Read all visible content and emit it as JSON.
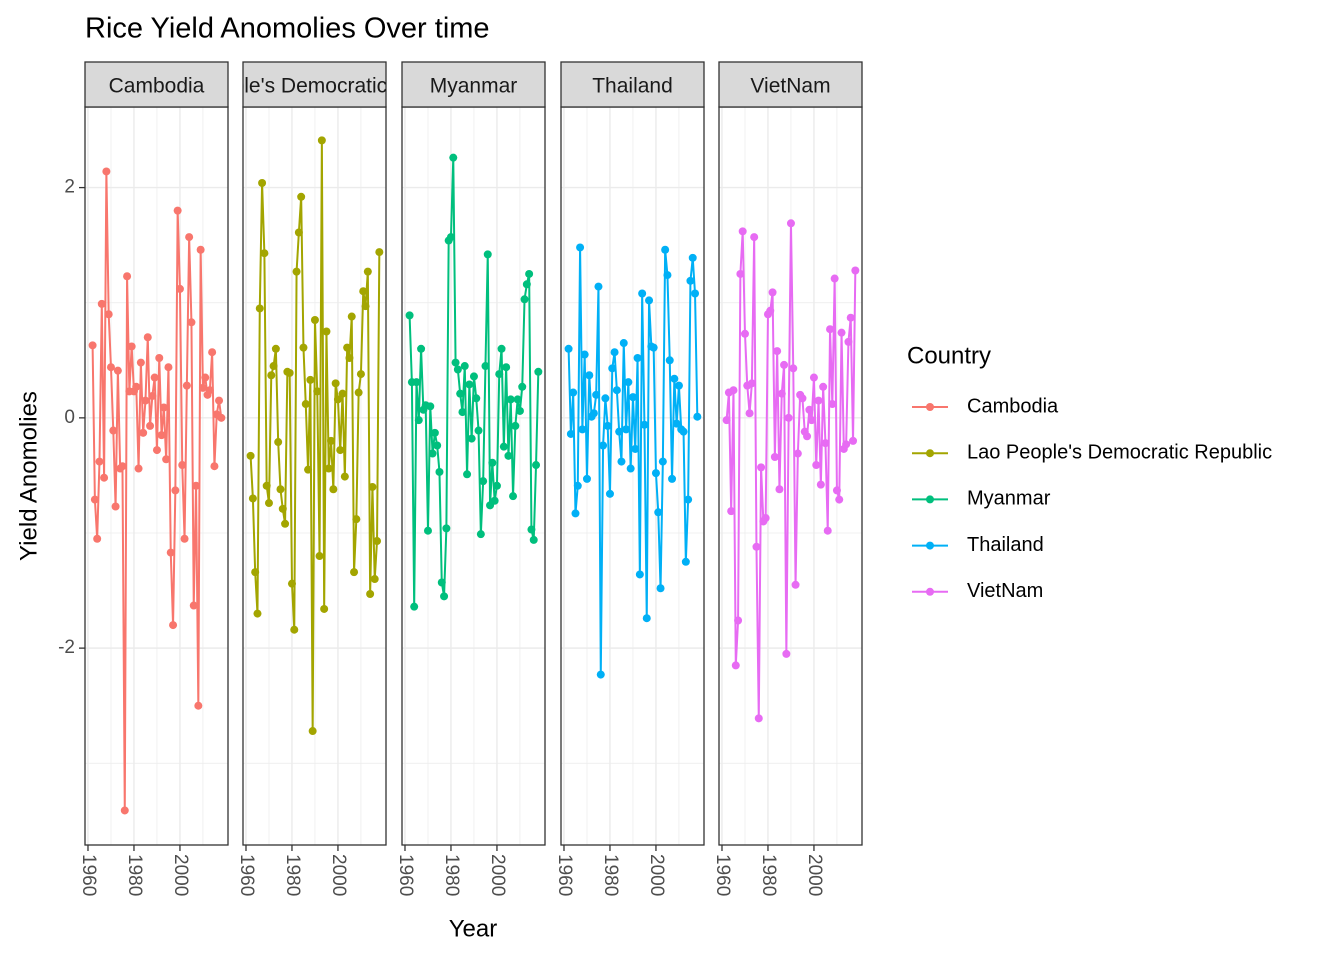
{
  "chart_data": {
    "type": "line",
    "title": "Rice Yield Anomolies Over time",
    "xlabel": "Year",
    "ylabel": "Yield Anomolies",
    "legend_title": "Country",
    "legend": "right",
    "facet": true,
    "grid": true,
    "xlim": [
      1958.7,
      2020.9
    ],
    "xticks": [
      1960,
      1980,
      2000
    ],
    "x_minor_grid": [
      1970,
      1990,
      2010
    ],
    "ylim": [
      -3.71,
      2.7
    ],
    "yticks": [
      -2,
      0,
      2
    ],
    "y_minor_grid": [
      -3,
      -1,
      1
    ],
    "x": [
      1962,
      1963,
      1964,
      1965,
      1966,
      1967,
      1968,
      1969,
      1970,
      1971,
      1972,
      1973,
      1974,
      1975,
      1976,
      1977,
      1978,
      1979,
      1980,
      1981,
      1982,
      1983,
      1984,
      1985,
      1986,
      1987,
      1988,
      1989,
      1990,
      1991,
      1992,
      1993,
      1994,
      1995,
      1996,
      1997,
      1998,
      1999,
      2000,
      2001,
      2002,
      2003,
      2004,
      2005,
      2006,
      2007,
      2008,
      2009,
      2010,
      2011,
      2012,
      2013,
      2014,
      2015,
      2016,
      2017,
      2018
    ],
    "series": [
      {
        "name": "Cambodia",
        "color": "#f8766d",
        "values": [
          0.63,
          -0.71,
          -1.05,
          -0.38,
          0.99,
          -0.52,
          2.14,
          0.9,
          0.44,
          -0.11,
          -0.77,
          0.41,
          -0.44,
          -0.42,
          -3.41,
          1.23,
          0.23,
          0.62,
          0.23,
          0.27,
          -0.44,
          0.48,
          -0.13,
          0.15,
          0.7,
          -0.07,
          0.19,
          0.35,
          -0.28,
          0.52,
          -0.15,
          0.09,
          -0.36,
          0.44,
          -1.17,
          -1.8,
          -0.63,
          1.8,
          1.12,
          -0.41,
          -1.05,
          0.28,
          1.57,
          0.83,
          -1.63,
          -0.59,
          -2.5,
          1.46,
          0.26,
          0.35,
          0.2,
          0.24,
          0.57,
          -0.42,
          0.03,
          0.15,
          0.0
        ]
      },
      {
        "name": "Lao People's Democratic Republic",
        "color": "#a3a500",
        "values": [
          -0.33,
          -0.7,
          -1.34,
          -1.7,
          0.95,
          2.04,
          1.43,
          -0.59,
          -0.74,
          0.37,
          0.45,
          0.6,
          -0.21,
          -0.62,
          -0.79,
          -0.92,
          0.4,
          0.39,
          -1.44,
          -1.84,
          1.27,
          1.61,
          1.92,
          0.61,
          0.12,
          -0.45,
          0.33,
          -2.72,
          0.85,
          0.23,
          -1.2,
          2.41,
          -1.66,
          0.75,
          -0.44,
          -0.2,
          -0.62,
          0.3,
          0.16,
          -0.28,
          0.21,
          -0.51,
          0.61,
          0.52,
          0.88,
          -1.34,
          -0.88,
          0.22,
          0.38,
          1.1,
          0.97,
          1.27,
          -1.53,
          -0.6,
          -1.4,
          -1.07,
          1.44
        ]
      },
      {
        "name": "Myanmar",
        "color": "#00bf7d",
        "values": [
          0.89,
          0.31,
          -1.64,
          0.31,
          -0.02,
          0.6,
          0.07,
          0.11,
          -0.98,
          0.1,
          -0.31,
          -0.13,
          -0.24,
          -0.47,
          -1.43,
          -1.55,
          -0.96,
          1.54,
          1.57,
          2.26,
          0.48,
          0.42,
          0.21,
          0.05,
          0.45,
          -0.49,
          0.29,
          -0.18,
          0.36,
          0.17,
          -0.11,
          -1.01,
          -0.55,
          0.45,
          1.42,
          -0.76,
          -0.39,
          -0.72,
          -0.59,
          0.38,
          0.6,
          -0.25,
          0.44,
          -0.33,
          0.16,
          -0.68,
          -0.07,
          0.16,
          0.06,
          0.27,
          1.03,
          1.16,
          1.25,
          -0.97,
          -1.06,
          -0.41,
          0.4
        ]
      },
      {
        "name": "Thailand",
        "color": "#00b0f6",
        "values": [
          0.6,
          -0.14,
          0.22,
          -0.83,
          -0.59,
          1.48,
          -0.1,
          0.55,
          -0.53,
          0.37,
          0.01,
          0.04,
          0.2,
          1.14,
          -2.23,
          -0.24,
          0.17,
          -0.07,
          -0.66,
          0.43,
          0.57,
          0.24,
          -0.12,
          -0.38,
          0.65,
          -0.1,
          0.31,
          -0.44,
          0.18,
          -0.27,
          0.52,
          -1.36,
          1.08,
          -0.06,
          -1.74,
          1.02,
          0.62,
          0.61,
          -0.48,
          -0.82,
          -1.48,
          -0.38,
          1.46,
          1.24,
          0.5,
          -0.53,
          0.34,
          -0.05,
          0.28,
          -0.1,
          -0.12,
          -1.25,
          -0.71,
          1.19,
          1.39,
          1.08,
          0.01
        ]
      },
      {
        "name": "VietNam",
        "color": "#e76bf3",
        "values": [
          -0.02,
          0.22,
          -0.81,
          0.24,
          -2.15,
          -1.76,
          1.25,
          1.62,
          0.73,
          0.28,
          0.04,
          0.3,
          1.57,
          -1.12,
          -2.61,
          -0.43,
          -0.9,
          -0.87,
          0.9,
          0.93,
          1.09,
          -0.34,
          0.58,
          -0.62,
          0.21,
          0.46,
          -2.05,
          0.0,
          1.69,
          0.43,
          -1.45,
          -0.31,
          0.2,
          0.17,
          -0.12,
          -0.16,
          0.07,
          -0.02,
          0.35,
          -0.41,
          0.15,
          -0.58,
          0.27,
          -0.22,
          -0.98,
          0.77,
          0.12,
          1.21,
          -0.63,
          -0.71,
          0.74,
          -0.27,
          -0.23,
          0.66,
          0.87,
          -0.2,
          1.28
        ]
      }
    ]
  }
}
